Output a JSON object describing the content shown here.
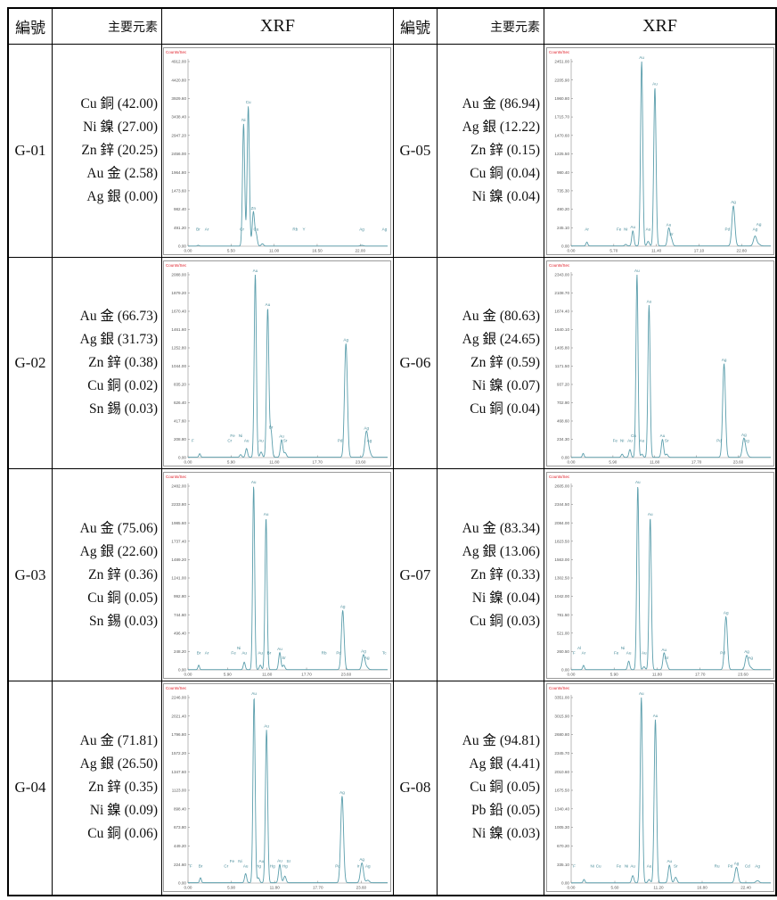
{
  "header": {
    "id_label": "編號",
    "elements_label": "主要元素",
    "xrf_label": "XRF"
  },
  "colors": {
    "spectrum": "#5b9eac",
    "counts_label": "#e0202a",
    "axis": "#8a8a8a"
  },
  "rows": [
    {
      "left": {
        "id": "G-01",
        "elements": [
          "Cu 銅 (42.00)",
          "Ni 鎳 (27.00)",
          "Zn 鋅 (20.25)",
          "Au 金 (2.58)",
          "Ag 銀 (0.00)"
        ],
        "chart": {
          "type": "line",
          "ylabel": "Counts/Sec",
          "xlim": [
            0,
            25.5
          ],
          "ylim": [
            0,
            4912
          ],
          "yticks": [
            "0.00",
            "491.20",
            "982.40",
            "1473.60",
            "1964.80",
            "2456.00",
            "2947.20",
            "3438.40",
            "3929.60",
            "4420.80",
            "4912.00"
          ],
          "xticks": [
            [
              "0.00",
              0
            ],
            [
              "5.50",
              5.5
            ],
            [
              "11.00",
              11
            ],
            [
              "16.50",
              16.5
            ],
            [
              "22.00",
              22
            ]
          ],
          "peaks": [
            [
              1.3,
              20,
              "Br"
            ],
            [
              2.4,
              0,
              "Ar"
            ],
            [
              6.9,
              0,
              "Cr"
            ],
            [
              7.1,
              3250,
              "Ni"
            ],
            [
              7.7,
              3720,
              "Cu"
            ],
            [
              8.35,
              900,
              "Zn"
            ],
            [
              8.7,
              320,
              "Cu"
            ],
            [
              9.5,
              60,
              ""
            ],
            [
              13.7,
              0,
              "Rb"
            ],
            [
              14.8,
              0,
              "Y"
            ],
            [
              22.2,
              20,
              "Ag"
            ],
            [
              25.1,
              0,
              "Ag"
            ]
          ]
        }
      },
      "right": {
        "id": "G-05",
        "elements": [
          "Au 金 (86.94)",
          "Ag 銀 (12.22)",
          "Zn 鋅 (0.15)",
          "Cu 銅 (0.04)",
          "Ni 鎳 (0.04)"
        ],
        "chart": {
          "type": "line",
          "ylabel": "Counts/Sec",
          "xlim": [
            0,
            26.7
          ],
          "ylim": [
            0,
            2451
          ],
          "yticks": [
            "0.00",
            "245.10",
            "490.20",
            "735.30",
            "980.40",
            "1225.50",
            "1470.60",
            "1715.70",
            "1960.80",
            "2205.90",
            "2451.00"
          ],
          "xticks": [
            [
              "0.00",
              0
            ],
            [
              "5.70",
              5.7
            ],
            [
              "11.40",
              11.4
            ],
            [
              "17.10",
              17.1
            ],
            [
              "22.80",
              22.8
            ]
          ],
          "peaks": [
            [
              2.1,
              50,
              "Ar"
            ],
            [
              6.4,
              0,
              "Fe"
            ],
            [
              7.3,
              20,
              "Ni"
            ],
            [
              8.25,
              200,
              "Au"
            ],
            [
              9.43,
              2451,
              "Au"
            ],
            [
              10.3,
              60,
              "Au"
            ],
            [
              11.2,
              2100,
              "Au"
            ],
            [
              13.05,
              230,
              "Au"
            ],
            [
              13.4,
              90,
              "Sr"
            ],
            [
              20.9,
              0,
              "Pd"
            ],
            [
              21.7,
              530,
              "Ag"
            ],
            [
              24.6,
              130,
              "Ag"
            ],
            [
              25.1,
              20,
              "Ag"
            ]
          ]
        }
      }
    },
    {
      "left": {
        "id": "G-02",
        "elements": [
          "Au 金 (66.73)",
          "Ag 銀 (31.73)",
          "Zn 鋅 (0.38)",
          "Cu 銅 (0.02)",
          "Sn 錫 (0.03)"
        ],
        "chart": {
          "type": "line",
          "ylabel": "Counts/Sec",
          "xlim": [
            0,
            27.3
          ],
          "ylim": [
            0,
            2088
          ],
          "yticks": [
            "0.00",
            "208.80",
            "417.60",
            "626.40",
            "835.20",
            "1044.00",
            "1252.80",
            "1461.60",
            "1670.40",
            "1879.20",
            "2088.00"
          ],
          "xticks": [
            [
              "0.00",
              0
            ],
            [
              "5.90",
              5.9
            ],
            [
              "11.80",
              11.8
            ],
            [
              "17.70",
              17.7
            ],
            [
              "23.60",
              23.6
            ]
          ],
          "peaks": [
            [
              0.3,
              0,
              "F"
            ],
            [
              1.6,
              40,
              ""
            ],
            [
              5.7,
              0,
              "Cr"
            ],
            [
              6.1,
              0,
              "Fe"
            ],
            [
              7.2,
              30,
              "Ni"
            ],
            [
              8.0,
              100,
              "Au"
            ],
            [
              9.2,
              2088,
              "Au"
            ],
            [
              10.0,
              60,
              "Au"
            ],
            [
              10.9,
              1700,
              "Au"
            ],
            [
              11.35,
              300,
              "Br"
            ],
            [
              12.8,
              200,
              "Au"
            ],
            [
              13.3,
              50,
              "Sr"
            ],
            [
              20.8,
              0,
              "Pd"
            ],
            [
              21.6,
              1300,
              "Ag"
            ],
            [
              24.4,
              290,
              "Ag"
            ],
            [
              24.8,
              60,
              "Ag"
            ]
          ]
        }
      },
      "right": {
        "id": "G-06",
        "elements": [
          "Au 金 (80.63)",
          "Ag 銀 (24.65)",
          "Zn 鋅 (0.59)",
          "Ni 鎳 (0.07)",
          "Cu 銅 (0.04)"
        ],
        "chart": {
          "type": "line",
          "ylabel": "Counts/Sec",
          "xlim": [
            0,
            28.2
          ],
          "ylim": [
            0,
            2343
          ],
          "yticks": [
            "0.00",
            "234.30",
            "468.60",
            "702.90",
            "937.20",
            "1171.50",
            "1405.80",
            "1640.10",
            "1874.40",
            "2108.70",
            "2343.00"
          ],
          "xticks": [
            [
              "0.00",
              0
            ],
            [
              "5.90",
              5.9
            ],
            [
              "11.80",
              11.8
            ],
            [
              "17.70",
              17.7
            ],
            [
              "23.60",
              23.6
            ]
          ],
          "peaks": [
            [
              1.7,
              50,
              ""
            ],
            [
              6.2,
              0,
              "Fe"
            ],
            [
              7.2,
              40,
              "Ni"
            ],
            [
              8.3,
              100,
              "Au"
            ],
            [
              8.8,
              0,
              "Cu"
            ],
            [
              9.3,
              2343,
              "Au"
            ],
            [
              10.0,
              40,
              "Au"
            ],
            [
              11.0,
              1950,
              "Au"
            ],
            [
              12.9,
              230,
              "Au"
            ],
            [
              13.5,
              40,
              "Sr"
            ],
            [
              20.9,
              0,
              "Pd"
            ],
            [
              21.6,
              1200,
              "Ag"
            ],
            [
              24.4,
              240,
              "Ag"
            ],
            [
              24.8,
              40,
              "Ag"
            ]
          ]
        }
      }
    },
    {
      "left": {
        "id": "G-03",
        "elements": [
          "Au 金 (75.06)",
          "Ag 銀 (22.60)",
          "Zn 鋅 (0.36)",
          "Cu 銅 (0.05)",
          "Sn 錫 (0.03)"
        ],
        "chart": {
          "type": "line",
          "ylabel": "Counts/Sec",
          "xlim": [
            0,
            29.8
          ],
          "ylim": [
            0,
            2482
          ],
          "yticks": [
            "0.00",
            "248.20",
            "496.40",
            "744.60",
            "992.80",
            "1241.00",
            "1489.20",
            "1737.40",
            "1985.60",
            "2233.80",
            "2482.00"
          ],
          "xticks": [
            [
              "0.00",
              0
            ],
            [
              "5.90",
              5.9
            ],
            [
              "11.80",
              11.8
            ],
            [
              "17.70",
              17.7
            ],
            [
              "23.60",
              23.6
            ]
          ],
          "peaks": [
            [
              1.6,
              60,
              "Br"
            ],
            [
              2.8,
              0,
              "Ar"
            ],
            [
              6.8,
              0,
              "Fe"
            ],
            [
              7.6,
              0,
              "Ni"
            ],
            [
              8.4,
              100,
              "Au"
            ],
            [
              9.8,
              2482,
              "Au"
            ],
            [
              10.8,
              60,
              "Au"
            ],
            [
              11.65,
              2050,
              "Au"
            ],
            [
              12.1,
              0,
              "Br"
            ],
            [
              13.7,
              230,
              "Au"
            ],
            [
              14.3,
              60,
              "Sr"
            ],
            [
              20.3,
              0,
              "Rb"
            ],
            [
              22.5,
              0,
              "Pd"
            ],
            [
              23.1,
              800,
              "Ag"
            ],
            [
              26.2,
              200,
              "Ag"
            ],
            [
              26.7,
              30,
              "Ag"
            ],
            [
              29.3,
              0,
              "Tc"
            ]
          ]
        }
      },
      "right": {
        "id": "G-07",
        "elements": [
          "Au 金 (83.34)",
          "Ag 銀 (13.06)",
          "Zn 鋅 (0.33)",
          "Ni 鎳 (0.04)",
          "Cu 銅 (0.03)"
        ],
        "chart": {
          "type": "line",
          "ylabel": "Counts/Sec",
          "xlim": [
            0,
            27.4
          ],
          "ylim": [
            0,
            2605
          ],
          "yticks": [
            "0.00",
            "260.50",
            "521.00",
            "781.50",
            "1042.00",
            "1302.50",
            "1563.00",
            "1823.50",
            "2084.00",
            "2344.50",
            "2605.00"
          ],
          "xticks": [
            [
              "0.00",
              0
            ],
            [
              "5.90",
              5.9
            ],
            [
              "11.80",
              11.8
            ],
            [
              "17.70",
              17.7
            ],
            [
              "23.60",
              23.6
            ]
          ],
          "peaks": [
            [
              0.4,
              0,
              "F"
            ],
            [
              1.1,
              0,
              "Al"
            ],
            [
              1.7,
              60,
              "Ar"
            ],
            [
              6.2,
              0,
              "Fe"
            ],
            [
              7.1,
              0,
              "Ni"
            ],
            [
              7.9,
              120,
              "Au"
            ],
            [
              9.15,
              2605,
              "Au"
            ],
            [
              10.0,
              40,
              "Au"
            ],
            [
              10.85,
              2150,
              "Au"
            ],
            [
              12.75,
              230,
              "Au"
            ],
            [
              13.1,
              80,
              "Sr"
            ],
            [
              20.8,
              0,
              "Pd"
            ],
            [
              21.25,
              750,
              "Ag"
            ],
            [
              24.1,
              200,
              "Ag"
            ],
            [
              24.6,
              30,
              "Ag"
            ]
          ]
        }
      }
    },
    {
      "left": {
        "id": "G-04",
        "elements": [
          "Au 金 (71.81)",
          "Ag 銀 (26.50)",
          "Zn 鋅 (0.35)",
          "Ni 鎳 (0.09)",
          "Cu 銅 (0.06)"
        ],
        "chart": {
          "type": "line",
          "ylabel": "Counts/Sec",
          "xlim": [
            0,
            27.2
          ],
          "ylim": [
            0,
            2246
          ],
          "yticks": [
            "0.00",
            "224.60",
            "449.20",
            "673.80",
            "898.40",
            "1123.00",
            "1347.60",
            "1572.20",
            "1796.80",
            "2021.40",
            "2246.00"
          ],
          "xticks": [
            [
              "0.00",
              0
            ],
            [
              "5.90",
              5.9
            ],
            [
              "11.80",
              11.8
            ],
            [
              "17.70",
              17.7
            ],
            [
              "23.60",
              23.6
            ]
          ],
          "peaks": [
            [
              0.4,
              0,
              "F"
            ],
            [
              1.7,
              60,
              "Br"
            ],
            [
              5.2,
              0,
              "Cr"
            ],
            [
              6.0,
              0,
              "Fe"
            ],
            [
              7.1,
              0,
              "Ni"
            ],
            [
              7.85,
              110,
              "Au"
            ],
            [
              9.0,
              2246,
              "Au"
            ],
            [
              9.6,
              60,
              "Hg"
            ],
            [
              10.0,
              0,
              "Au"
            ],
            [
              10.7,
              1850,
              "Au"
            ],
            [
              11.5,
              0,
              "Hg"
            ],
            [
              12.5,
              220,
              "Au"
            ],
            [
              13.2,
              80,
              "Hg"
            ],
            [
              13.7,
              0,
              "Sr"
            ],
            [
              20.4,
              0,
              "Pd"
            ],
            [
              21.0,
              1050,
              "Ag"
            ],
            [
              23.2,
              0,
              "Ir"
            ],
            [
              23.7,
              240,
              "Ag"
            ],
            [
              24.5,
              30,
              "Ag"
            ]
          ]
        }
      },
      "right": {
        "id": "G-08",
        "elements": [
          "Au 金 (94.81)",
          "Ag 銀 (4.41)",
          "Cu 銅 (0.05)",
          "Pb 鉛 (0.05)",
          "Ni 鎳 (0.03)"
        ],
        "chart": {
          "type": "line",
          "ylabel": "Counts/Sec",
          "xlim": [
            0,
            25.6
          ],
          "ylim": [
            0,
            3351
          ],
          "yticks": [
            "0.00",
            "335.10",
            "670.20",
            "1005.30",
            "1340.40",
            "1675.50",
            "2010.60",
            "2345.70",
            "2680.80",
            "3015.90",
            "3351.00"
          ],
          "xticks": [
            [
              "0.00",
              0
            ],
            [
              "5.60",
              5.6
            ],
            [
              "11.20",
              11.2
            ],
            [
              "16.80",
              16.8
            ],
            [
              "22.40",
              22.4
            ]
          ],
          "peaks": [
            [
              0.4,
              0,
              "F"
            ],
            [
              1.65,
              60,
              ""
            ],
            [
              2.7,
              0,
              "Ni"
            ],
            [
              3.5,
              0,
              "Cu"
            ],
            [
              6.1,
              0,
              "Fe"
            ],
            [
              7.1,
              0,
              "Ni"
            ],
            [
              7.9,
              130,
              "Au"
            ],
            [
              9.0,
              3351,
              "Au"
            ],
            [
              10.0,
              60,
              "Au"
            ],
            [
              10.8,
              2950,
              "Au"
            ],
            [
              12.6,
              320,
              "Au"
            ],
            [
              13.4,
              100,
              "Sr"
            ],
            [
              18.7,
              0,
              "Ru"
            ],
            [
              20.4,
              0,
              "Pd"
            ],
            [
              21.2,
              280,
              "Ag"
            ],
            [
              22.6,
              0,
              "Cd"
            ],
            [
              23.9,
              40,
              "Ag"
            ]
          ]
        }
      }
    }
  ]
}
